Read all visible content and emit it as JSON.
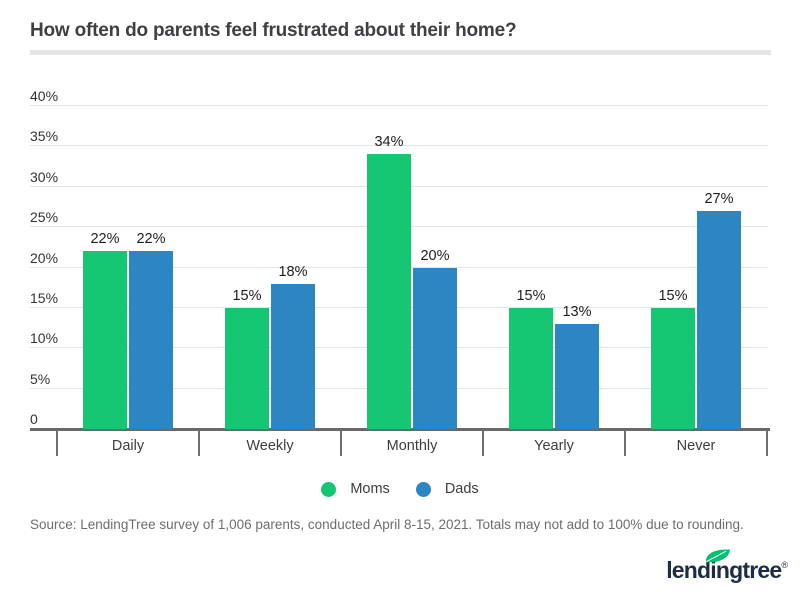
{
  "page": {
    "title": "How often do parents feel frustrated about their home?",
    "source_note": "Source: LendingTree survey of 1,006 parents, conducted April 8-15, 2021. Totals may not add to 100% due to rounding.",
    "logo_text": "lendingtree",
    "logo_reg_mark": "®"
  },
  "colors": {
    "moms_green": "#15c672",
    "dads_blue": "#2b86c3",
    "leaf_green": "#00c06d",
    "logo_navy": "#1d2d44",
    "axis_gray": "#696969",
    "gridline_gray": "#e4e4e4"
  },
  "chart_data": {
    "type": "bar",
    "title": "How often do parents feel frustrated about their home?",
    "categories": [
      "Daily",
      "Weekly",
      "Monthly",
      "Yearly",
      "Never"
    ],
    "series": [
      {
        "name": "Moms",
        "color_key": "moms_green",
        "values": [
          22,
          15,
          34,
          15,
          15
        ]
      },
      {
        "name": "Dads",
        "color_key": "dads_blue",
        "values": [
          22,
          18,
          20,
          13,
          27
        ]
      }
    ],
    "value_suffix": "%",
    "data_labels": true,
    "grid": true,
    "legend_position": "bottom",
    "y_axis": {
      "min": 0,
      "max": 40,
      "tick_values": [
        40,
        35,
        30,
        25,
        20,
        15,
        10,
        5,
        0
      ],
      "tick_labels": [
        "40%",
        "35%",
        "30%",
        "25%",
        "20%",
        "15%",
        "10%",
        "5%",
        "0"
      ]
    }
  }
}
